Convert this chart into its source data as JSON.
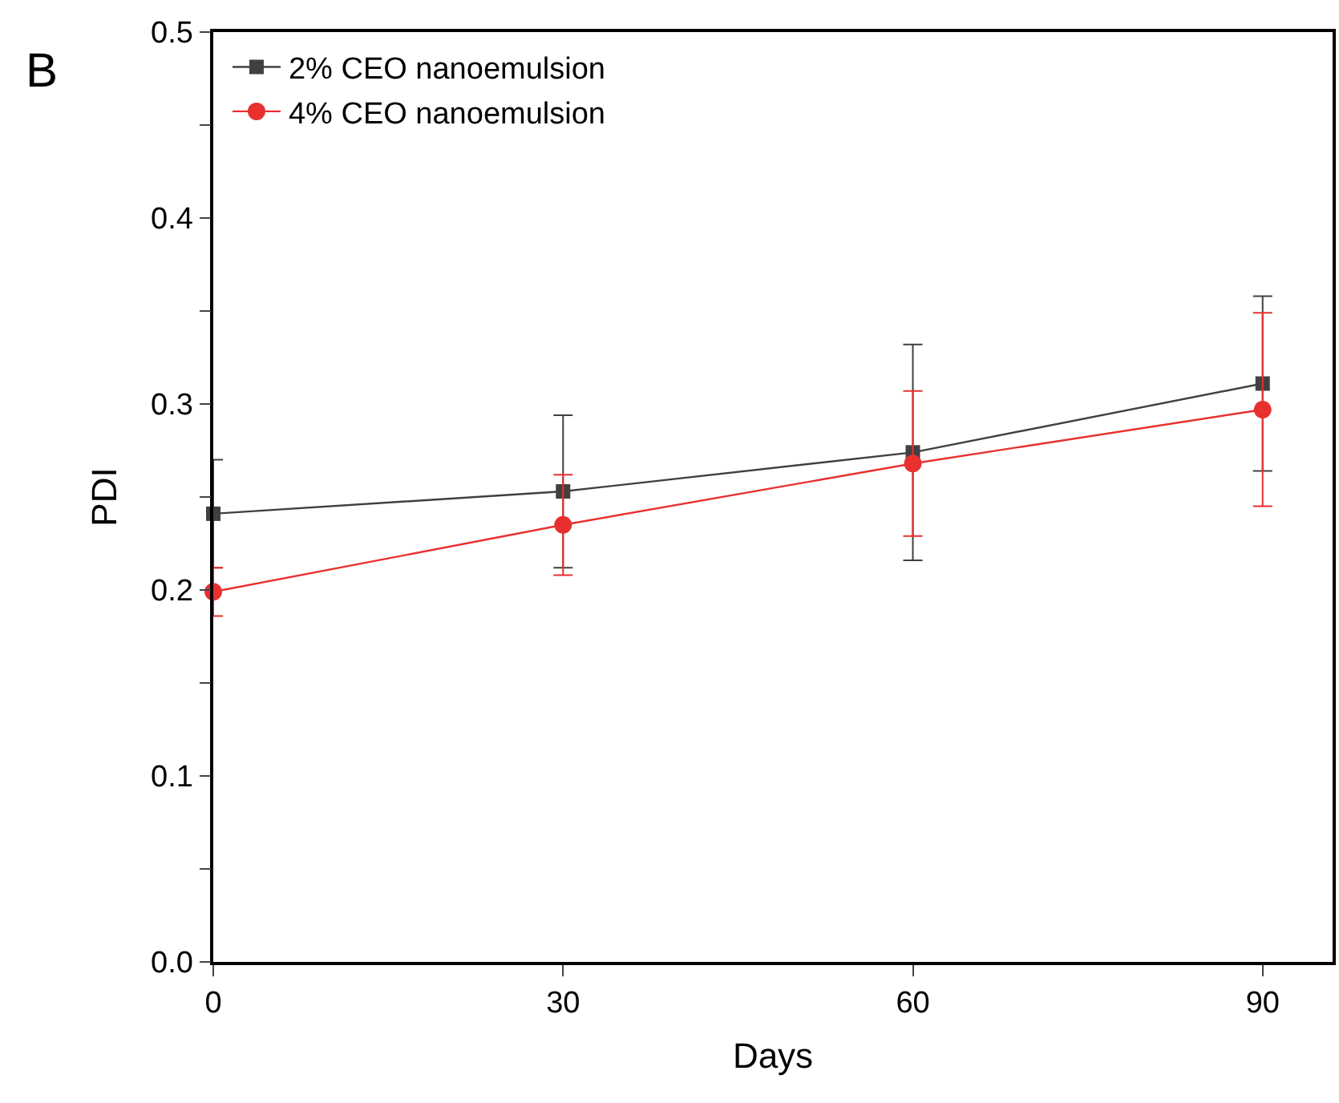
{
  "chart_data": {
    "type": "line",
    "title": "B",
    "xlabel": "Days",
    "ylabel": "PDI",
    "x": [
      0,
      30,
      60,
      90
    ],
    "series": [
      {
        "name": "2% CEO nanoemulsion",
        "color": "#404040",
        "marker": "square",
        "values": [
          0.241,
          0.253,
          0.274,
          0.311
        ],
        "errors": [
          0.029,
          0.041,
          0.058,
          0.047
        ]
      },
      {
        "name": "4% CEO nanoemulsion",
        "color": "#e8302f",
        "marker": "circle",
        "values": [
          0.199,
          0.235,
          0.268,
          0.297
        ],
        "errors": [
          0.013,
          0.027,
          0.039,
          0.052
        ]
      }
    ],
    "xlim": [
      0,
      96
    ],
    "xticks": [
      0,
      30,
      60,
      90
    ],
    "ylim": [
      0,
      0.5
    ],
    "yticks": [
      "0.0",
      {
        "value": 0.05,
        "label": null
      },
      0.1,
      {
        "value": 0.15,
        "label": null
      },
      0.2,
      {
        "value": 0.25,
        "label": null
      },
      0.3,
      {
        "value": 0.35,
        "label": null
      },
      0.4,
      {
        "value": 0.45,
        "label": null
      },
      0.5
    ],
    "legend": "top left",
    "line_style": "solid"
  }
}
